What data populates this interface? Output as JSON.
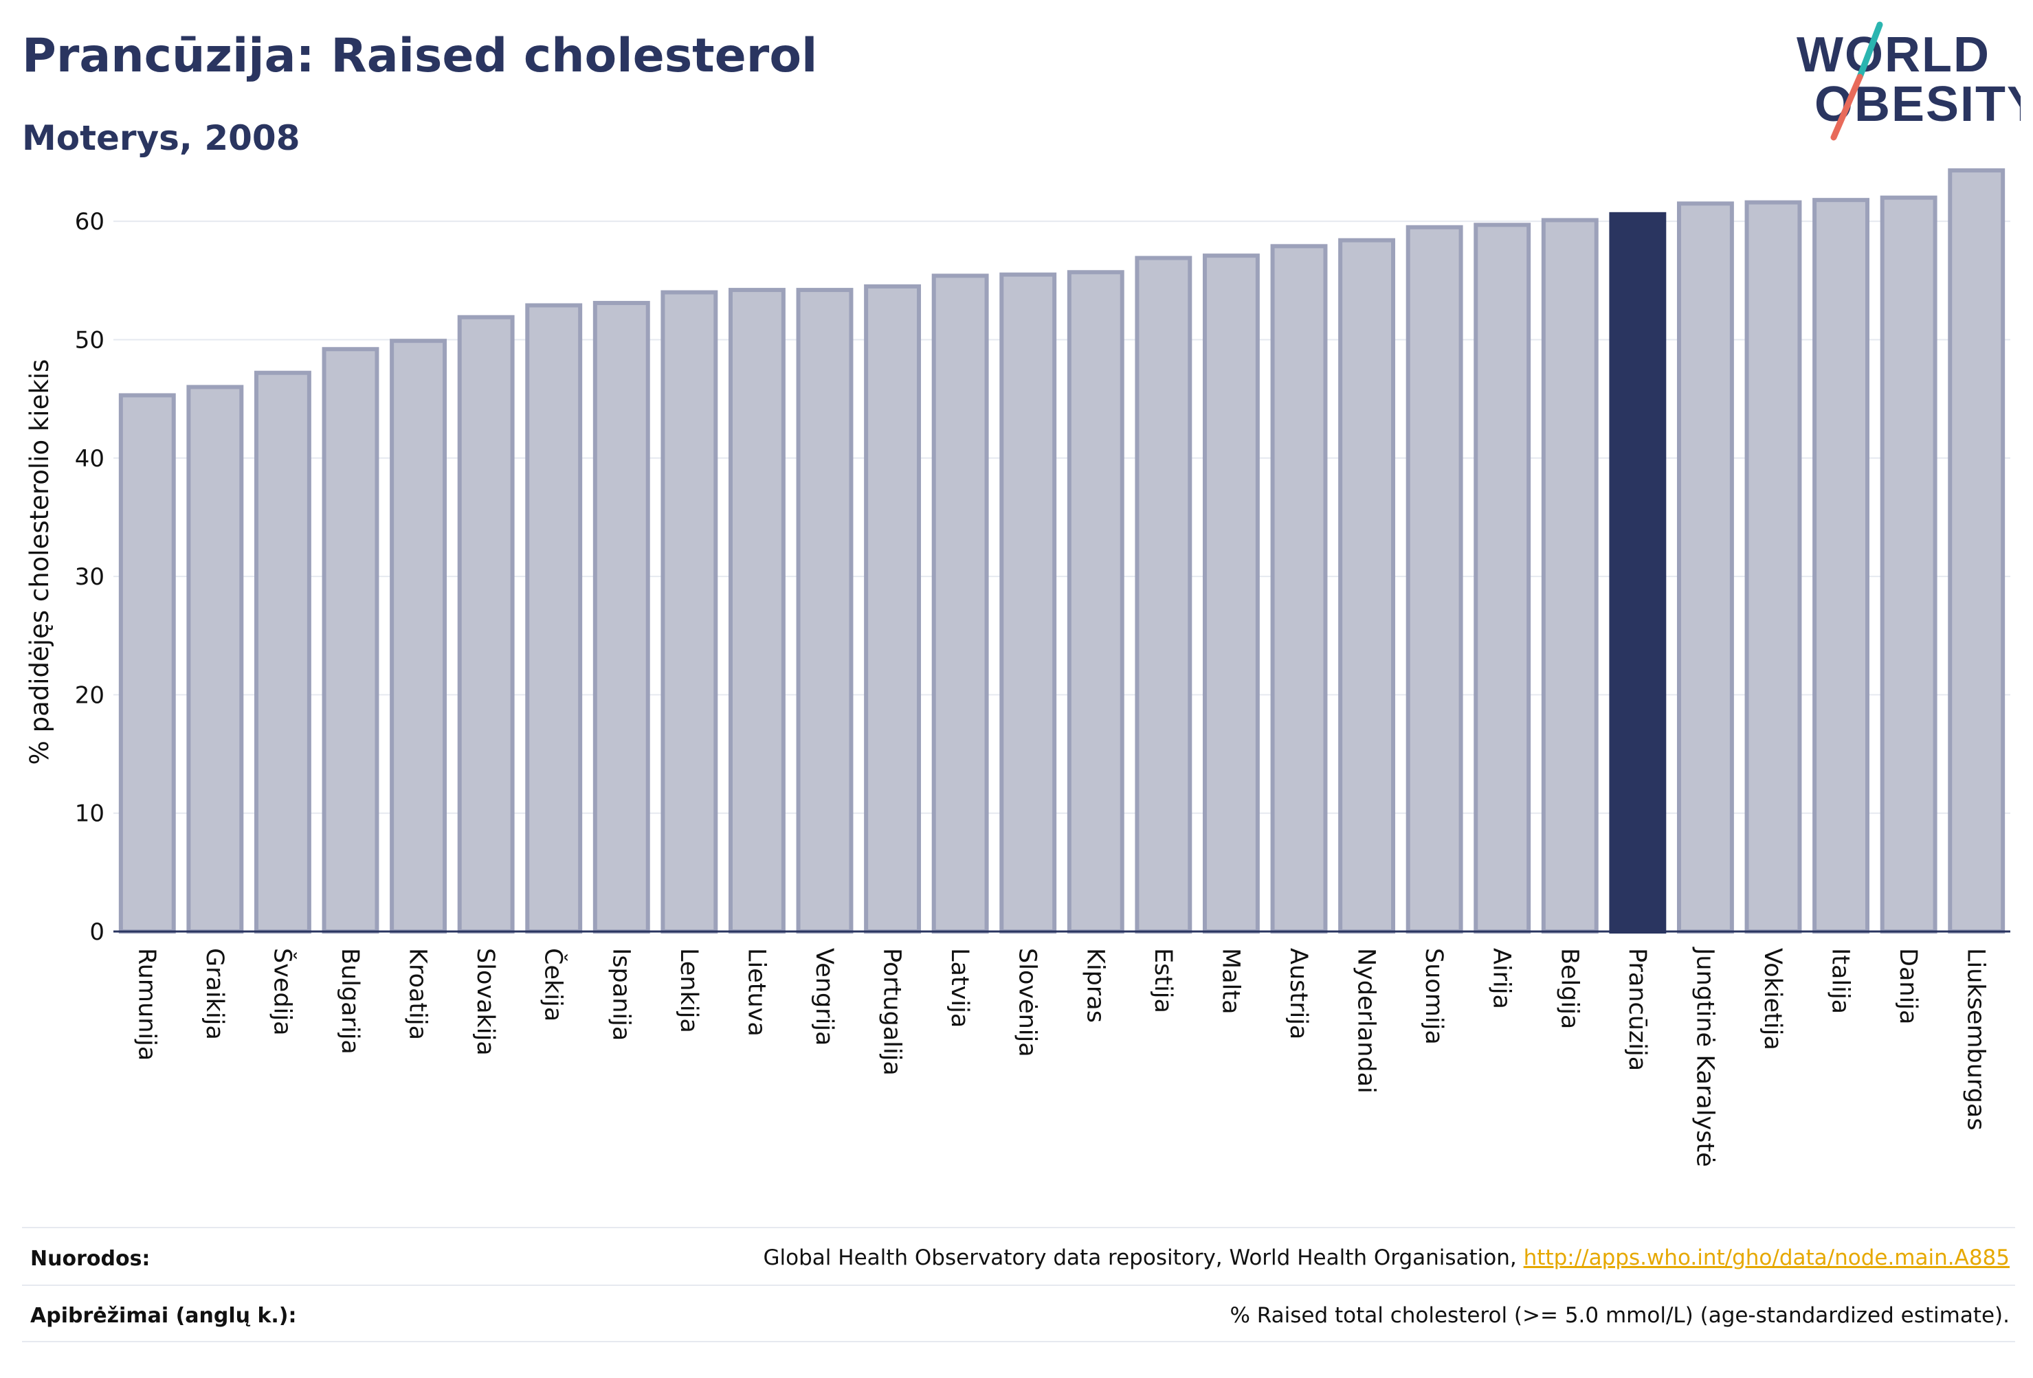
{
  "header": {
    "title": "Prancūzija: Raised cholesterol",
    "subtitle": "Moterys, 2008"
  },
  "logo": {
    "line1": "WORLD",
    "line2": "OBESITY"
  },
  "chart_data": {
    "type": "bar",
    "title": "Prancūzija: Raised cholesterol",
    "subtitle": "Moterys, 2008",
    "xlabel": "",
    "ylabel": "% padidėjęs cholesterolio kiekis",
    "ylim": [
      0,
      65
    ],
    "yticks": [
      0,
      10,
      20,
      30,
      40,
      50,
      60
    ],
    "grid": true,
    "highlight_category": "Prancūzija",
    "colors": {
      "bar": "#bfc2d0",
      "bar_border": "#9ca1ba",
      "highlight": "#2a3560",
      "grid": "#e6e9f0",
      "axis": "#2a3560"
    },
    "categories": [
      "Rumunija",
      "Graikija",
      "Švedija",
      "Bulgarija",
      "Kroatija",
      "Slovakija",
      "Čekija",
      "Ispanija",
      "Lenkija",
      "Lietuva",
      "Vengrija",
      "Portugalija",
      "Latvija",
      "Slovėnija",
      "Kipras",
      "Estija",
      "Malta",
      "Austrija",
      "Nyderlandai",
      "Suomija",
      "Airija",
      "Belgija",
      "Prancūzija",
      "Jungtinė Karalystė",
      "Vokietija",
      "Italija",
      "Danija",
      "Liuksemburgas"
    ],
    "values": [
      45.3,
      46.0,
      47.2,
      49.2,
      49.9,
      51.9,
      52.9,
      53.1,
      54.0,
      54.2,
      54.2,
      54.5,
      55.4,
      55.5,
      55.7,
      56.9,
      57.1,
      57.9,
      58.4,
      59.5,
      59.7,
      60.1,
      60.6,
      61.5,
      61.6,
      61.8,
      62.0,
      64.3
    ]
  },
  "footer": {
    "sources_label": "Nuorodos:",
    "sources_text": "Global Health Observatory data repository, World Health Organisation, ",
    "sources_link": "http://apps.who.int/gho/data/node.main.A885",
    "definitions_label": "Apibrėžimai (anglų k.):",
    "definitions_text": "% Raised total cholesterol (>= 5.0 mmol/L) (age-standardized estimate)."
  }
}
